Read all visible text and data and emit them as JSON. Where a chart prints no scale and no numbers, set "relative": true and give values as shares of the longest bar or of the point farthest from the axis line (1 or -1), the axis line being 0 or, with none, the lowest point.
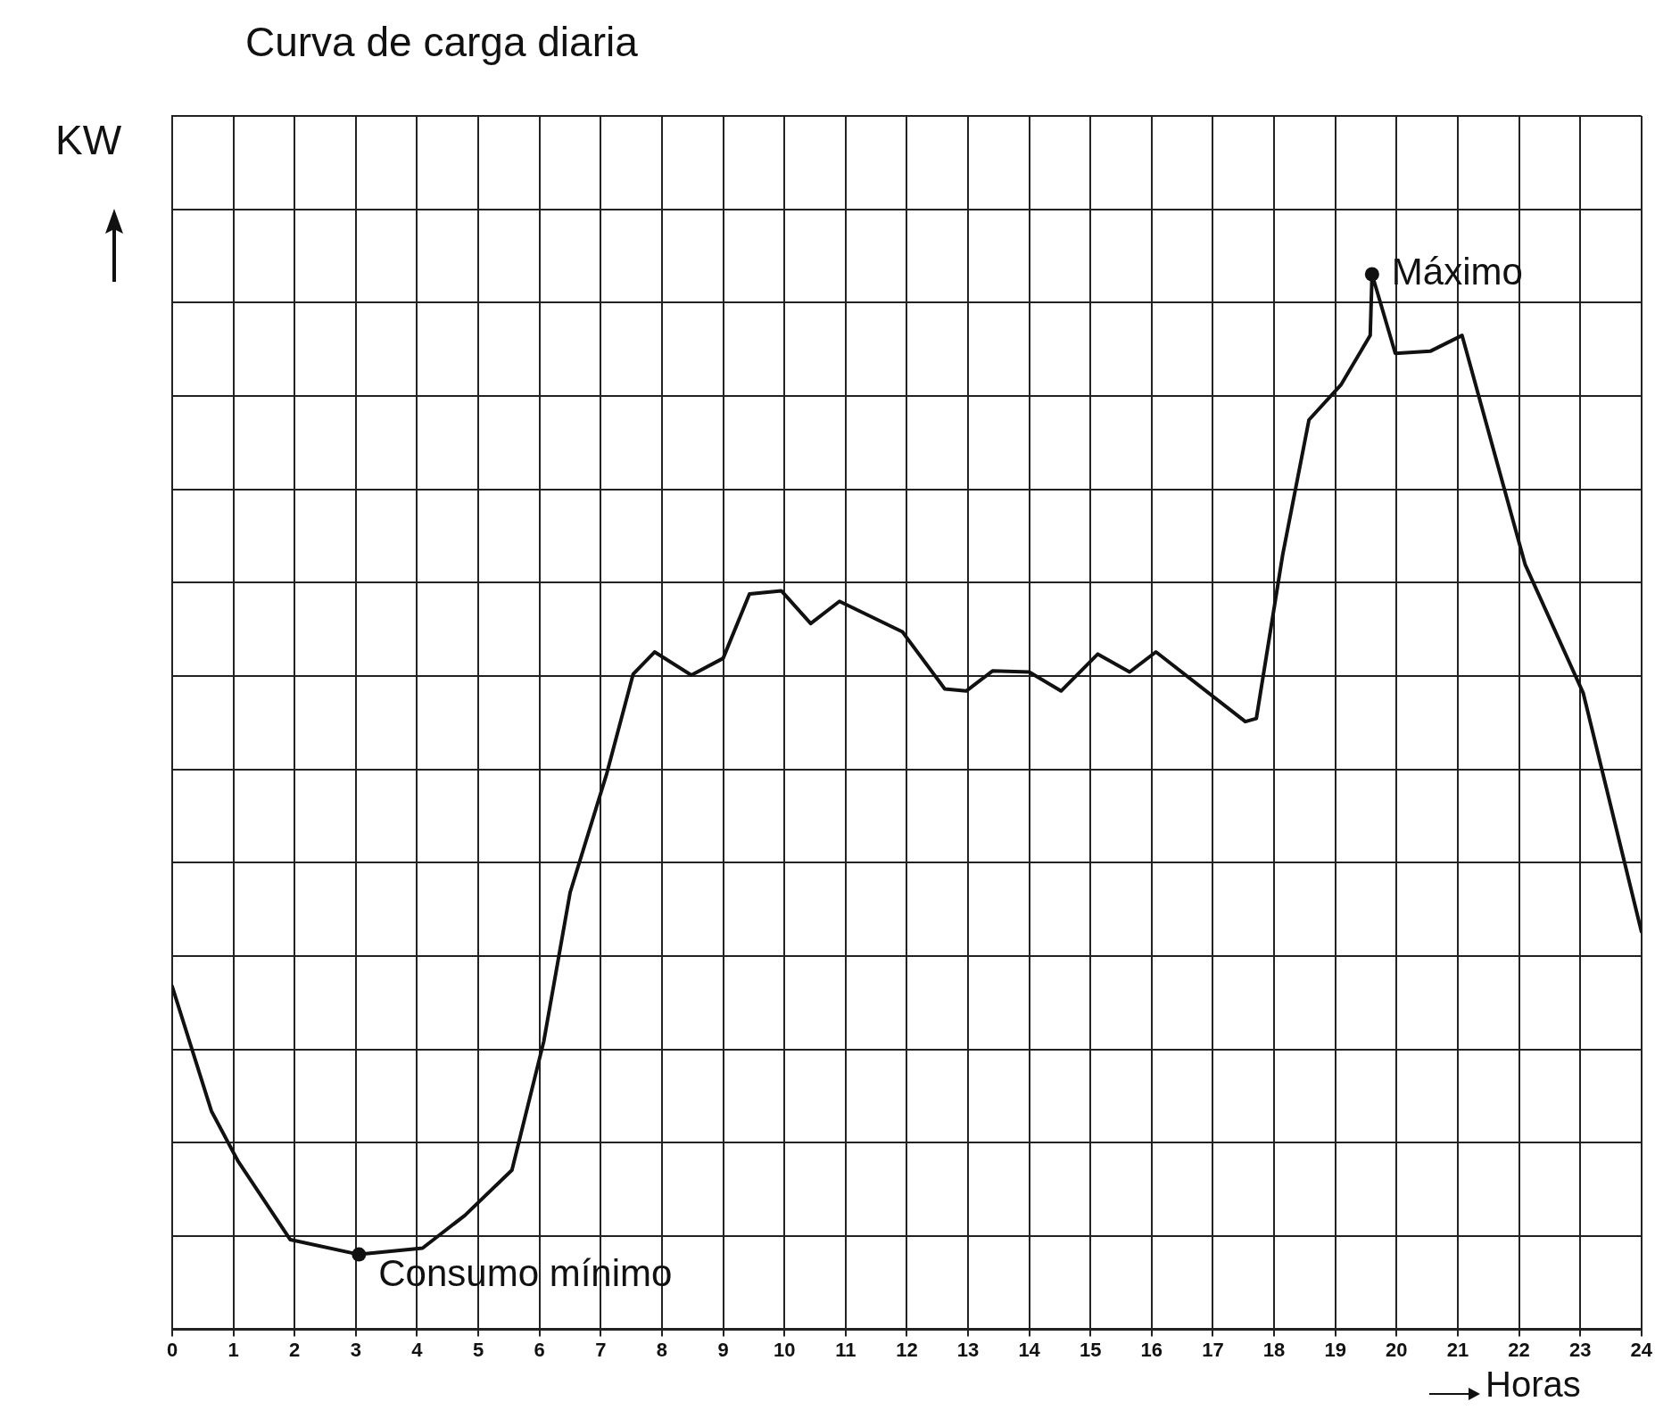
{
  "chart_data": {
    "type": "line",
    "title": "Curva de carga diaria",
    "ylabel": "KW",
    "xlabel": "Horas",
    "relative": true,
    "grid": true,
    "marker": "none",
    "line_style": "solid",
    "legend": false,
    "xlim": [
      0,
      24
    ],
    "xticks": [
      0,
      1,
      2,
      3,
      4,
      5,
      6,
      7,
      8,
      9,
      10,
      11,
      12,
      13,
      14,
      15,
      16,
      17,
      18,
      19,
      20,
      21,
      22,
      23,
      24
    ],
    "series": [
      {
        "color": "#111111",
        "x": [
          0,
          0.64,
          1.07,
          1.93,
          3.05,
          4.09,
          4.78,
          5.55,
          6.07,
          6.5,
          7.1,
          7.53,
          7.88,
          8.48,
          9.0,
          9.43,
          9.95,
          10.43,
          10.9,
          11.93,
          12.62,
          12.97,
          13.4,
          14.0,
          14.52,
          15.12,
          15.64,
          16.07,
          17.53,
          17.71,
          18.14,
          18.57,
          19.09,
          19.57,
          19.6,
          19.98,
          20.55,
          21.07,
          22.1,
          23.05,
          24
        ],
        "values": [
          0.325,
          0.207,
          0.16,
          0.085,
          0.071,
          0.077,
          0.108,
          0.151,
          0.273,
          0.414,
          0.527,
          0.621,
          0.642,
          0.62,
          0.636,
          0.697,
          0.7,
          0.669,
          0.69,
          0.661,
          0.607,
          0.605,
          0.624,
          0.623,
          0.605,
          0.64,
          0.623,
          0.642,
          0.576,
          0.579,
          0.734,
          0.862,
          0.895,
          0.942,
          1,
          0.925,
          0.927,
          0.942,
          0.725,
          0.603,
          0.377
        ]
      }
    ],
    "annotations": [
      {
        "text": "Máximo",
        "x": 19.6,
        "y": 1
      },
      {
        "text": "Consumo mínimo",
        "x": 3.05,
        "y": 0.071
      }
    ]
  }
}
